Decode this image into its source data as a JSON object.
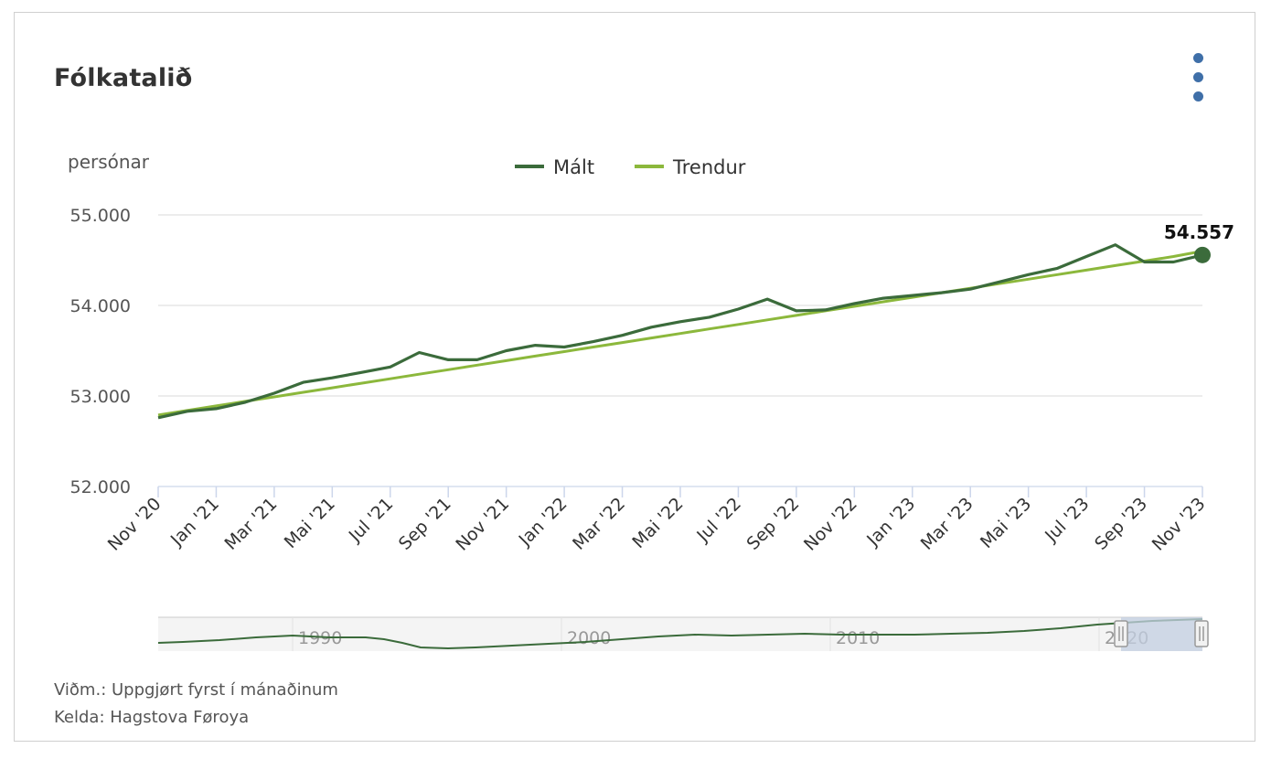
{
  "title": "Fólkatalið",
  "menu_icon": "vertical-dots-icon",
  "accent_color": "#3f6fa8",
  "colors": {
    "measured": "#3b6b3b",
    "trend": "#8cb83c",
    "grid": "#e0e0e0",
    "navigator_mask": "#c3cfe2"
  },
  "footnotes": {
    "note": "Viðm.: Uppgjørt fyrst í mánaðinum",
    "source": "Kelda: Hagstova Føroya"
  },
  "chart_data": {
    "type": "line",
    "title": "Fólkatalið",
    "ylabel": "persónar",
    "ylim": [
      52000,
      55000
    ],
    "yticks": [
      52000,
      53000,
      54000,
      55000
    ],
    "ytick_labels": [
      "52.000",
      "53.000",
      "54.000",
      "55.000"
    ],
    "x": [
      "Nov '20",
      "Dec '20",
      "Jan '21",
      "Feb '21",
      "Mar '21",
      "Apr '21",
      "Mai '21",
      "Jun '21",
      "Jul '21",
      "Aug '21",
      "Sep '21",
      "Okt '21",
      "Nov '21",
      "Dec '21",
      "Jan '22",
      "Feb '22",
      "Mar '22",
      "Apr '22",
      "Mai '22",
      "Jun '22",
      "Jul '22",
      "Aug '22",
      "Sep '22",
      "Okt '22",
      "Nov '22",
      "Dec '22",
      "Jan '23",
      "Feb '23",
      "Mar '23",
      "Apr '23",
      "Mai '23",
      "Jun '23",
      "Jul '23",
      "Aug '23",
      "Sep '23",
      "Okt '23",
      "Nov '23"
    ],
    "xtick_labels": [
      "Nov '20",
      "Jan '21",
      "Mar '21",
      "Mai '21",
      "Jul '21",
      "Sep '21",
      "Nov '21",
      "Jan '22",
      "Mar '22",
      "Mai '22",
      "Jul '22",
      "Sep '22",
      "Nov '22",
      "Jan '23",
      "Mar '23",
      "Mai '23",
      "Jul '23",
      "Sep '23",
      "Nov '23"
    ],
    "legend": "top-center",
    "grid": true,
    "series": [
      {
        "name": "Mált",
        "color": "#3b6b3b",
        "values": [
          52760,
          52830,
          52860,
          52930,
          53030,
          53150,
          53200,
          53260,
          53320,
          53480,
          53400,
          53400,
          53500,
          53560,
          53540,
          53600,
          53670,
          53760,
          53820,
          53870,
          53960,
          54070,
          53940,
          53950,
          54020,
          54080,
          54110,
          54140,
          54180,
          54260,
          54340,
          54410,
          54540,
          54670,
          54480,
          54480,
          54557
        ]
      },
      {
        "name": "Trendur",
        "color": "#8cb83c",
        "values": [
          52790,
          52840,
          52890,
          52940,
          52990,
          53040,
          53090,
          53140,
          53190,
          53240,
          53290,
          53340,
          53390,
          53440,
          53490,
          53540,
          53590,
          53640,
          53690,
          53740,
          53790,
          53840,
          53890,
          53940,
          53990,
          54040,
          54090,
          54140,
          54190,
          54240,
          54290,
          54340,
          54390,
          54440,
          54490,
          54540,
          54600
        ]
      }
    ],
    "last_point_label": "54.557",
    "navigator": {
      "tick_labels": [
        "1990",
        "2000",
        "2010",
        "2020"
      ],
      "selected_range": [
        "Nov '20",
        "Nov '23"
      ]
    }
  }
}
